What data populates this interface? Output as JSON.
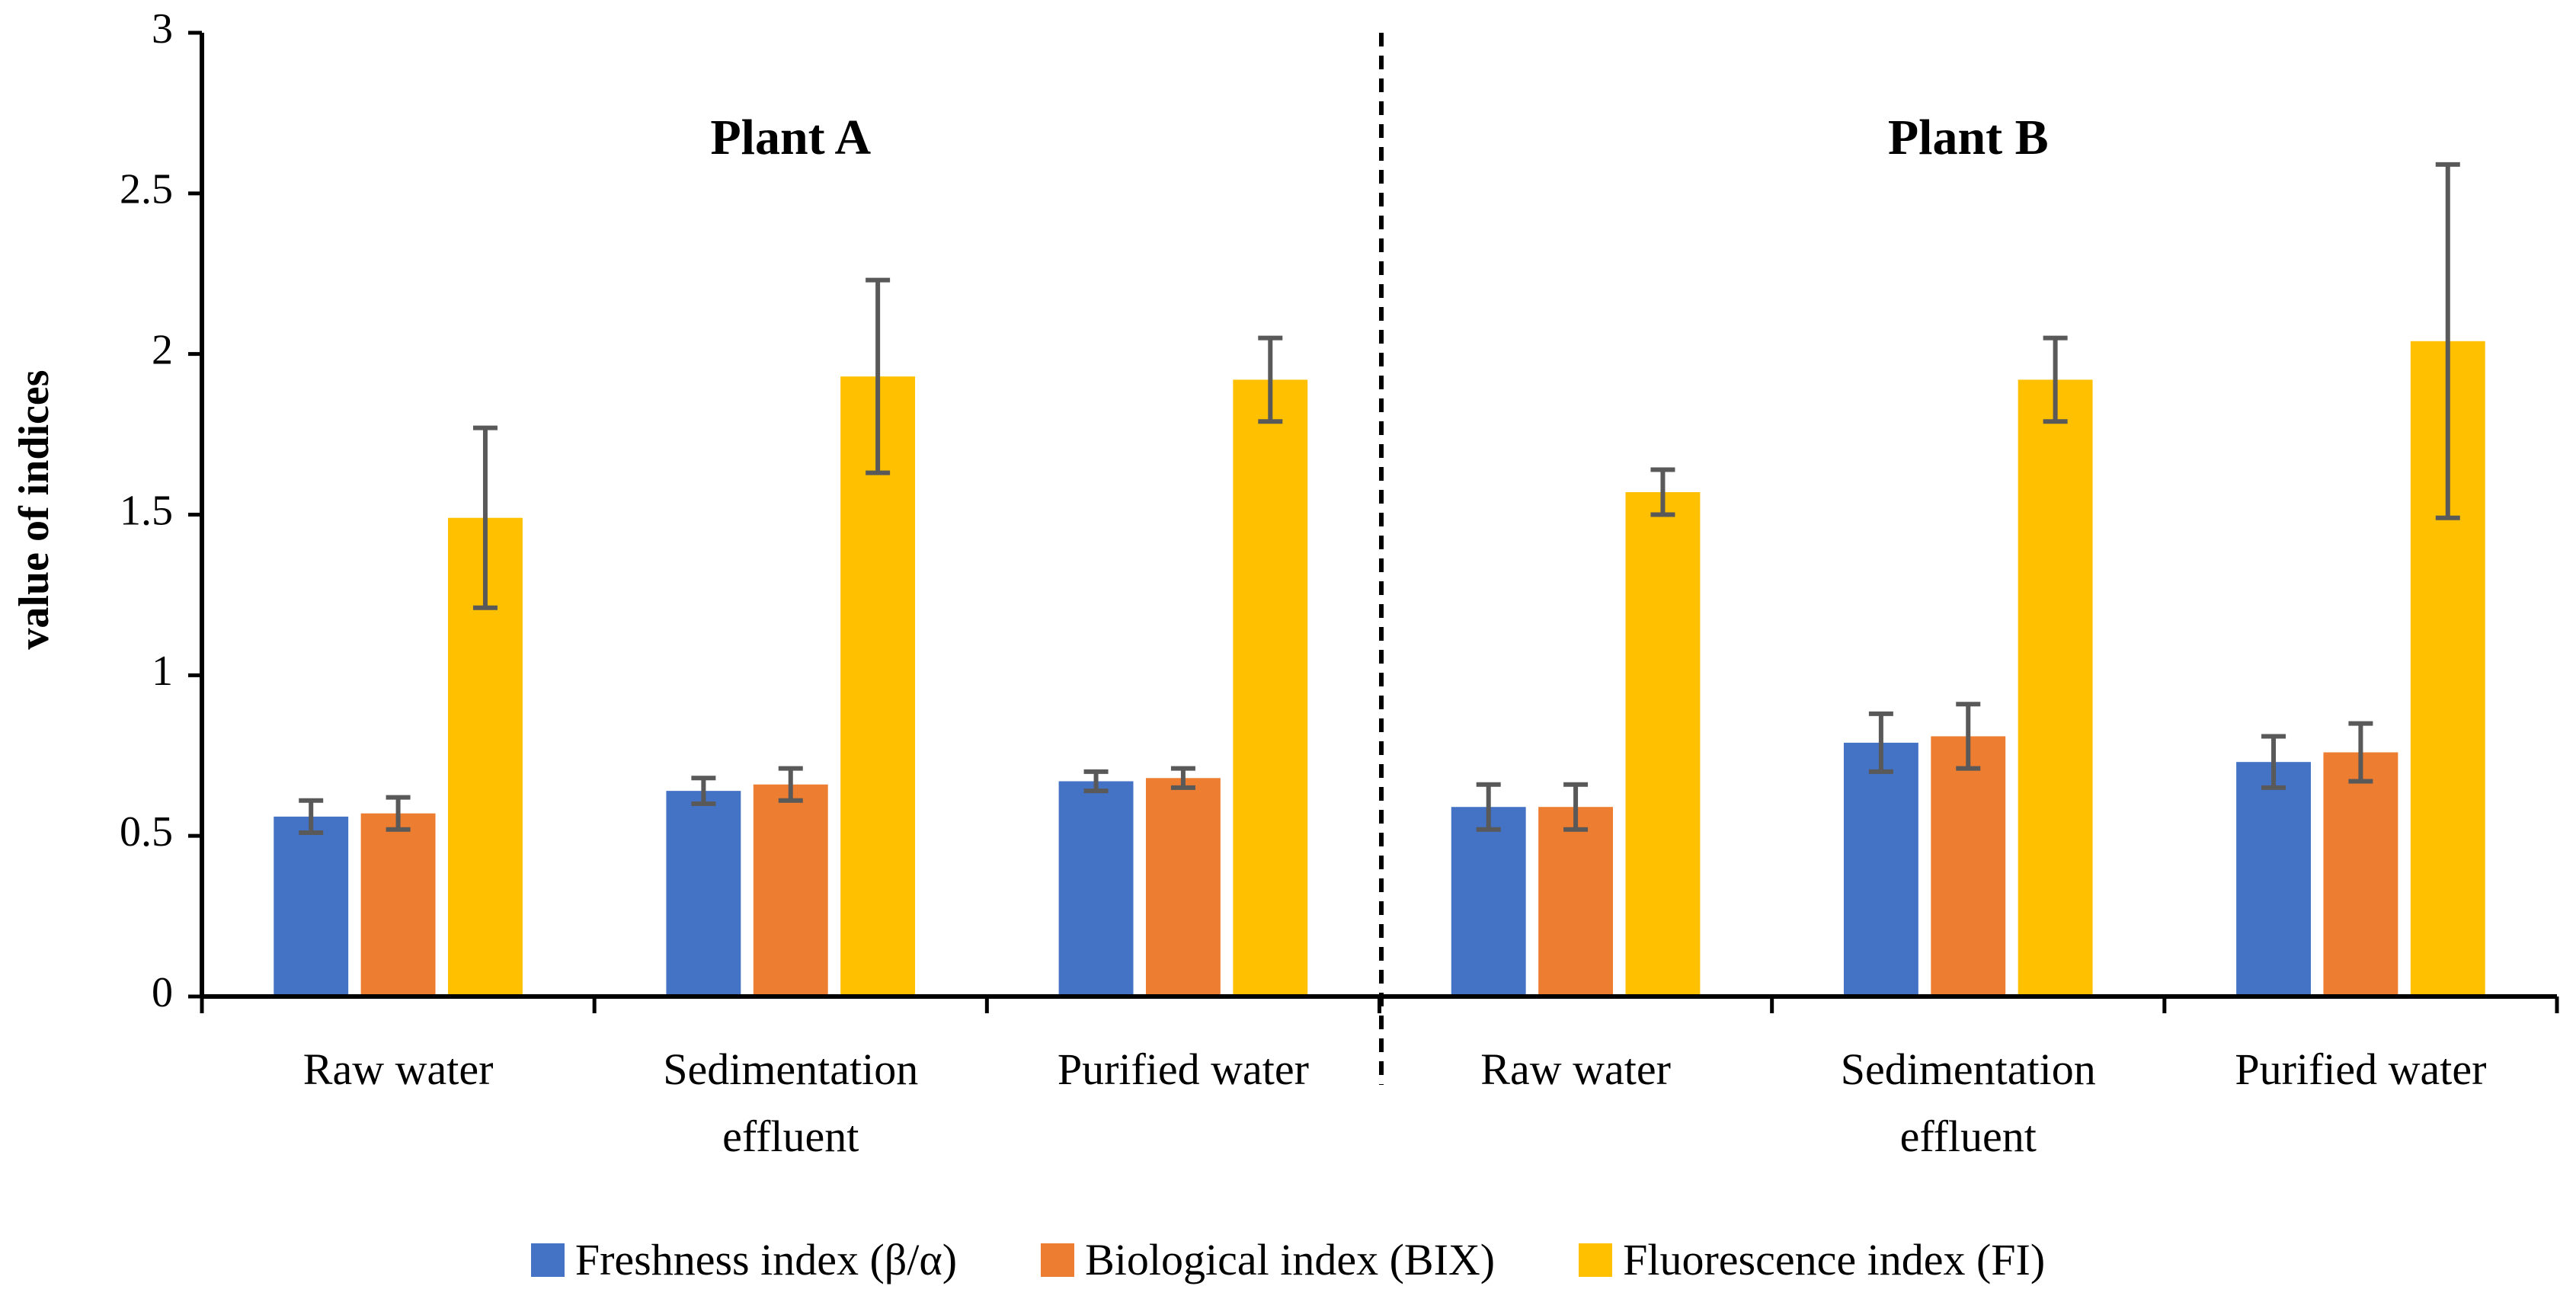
{
  "chart_data": {
    "type": "bar",
    "ylabel": "value of indices",
    "annotations": [
      "Plant A",
      "Plant B"
    ],
    "categories": [
      "Raw water",
      "Sedimentation effluent",
      "Purified water",
      "Raw water",
      "Sedimentation effluent",
      "Purified water"
    ],
    "series": [
      {
        "name": "Freshness index (β/α)",
        "color": "#4472c4",
        "values": [
          0.56,
          0.64,
          0.67,
          0.59,
          0.79,
          0.73
        ],
        "errors": [
          0.05,
          0.04,
          0.03,
          0.07,
          0.09,
          0.08
        ]
      },
      {
        "name": "Biological index (BIX)",
        "color": "#ed7d31",
        "values": [
          0.57,
          0.66,
          0.68,
          0.59,
          0.81,
          0.76
        ],
        "errors": [
          0.05,
          0.05,
          0.03,
          0.07,
          0.1,
          0.09
        ]
      },
      {
        "name": "Fluorescence index (FI)",
        "color": "#ffc000",
        "values": [
          1.49,
          1.93,
          1.92,
          1.57,
          1.92,
          2.04
        ],
        "errors": [
          0.28,
          0.3,
          0.13,
          0.07,
          0.13,
          0.55
        ]
      }
    ],
    "ylim": [
      0,
      3
    ],
    "yticks": [
      0,
      0.5,
      1,
      1.5,
      2,
      2.5,
      3
    ],
    "grid": false,
    "legend": "bottom"
  }
}
